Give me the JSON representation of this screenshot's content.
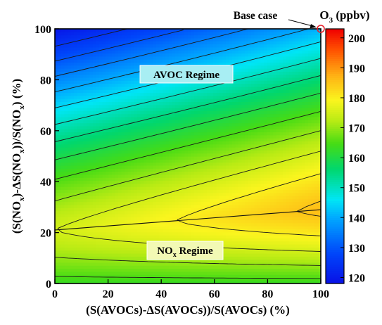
{
  "chart_data": {
    "type": "heatmap",
    "xlabel": "(S(AVOCs)-ΔS(AVOCs))/S(AVOCs)  (%)",
    "ylabel_parts": [
      "(S(NO",
      "x",
      ")-ΔS(NO",
      "x",
      "))/S(NO",
      "x",
      ")  (%)"
    ],
    "x_ticks": [
      0,
      20,
      40,
      60,
      80,
      100
    ],
    "y_ticks": [
      0,
      20,
      40,
      60,
      80,
      100
    ],
    "xlim": [
      0,
      100
    ],
    "ylim": [
      0,
      100
    ],
    "colorbar": {
      "title_parts": [
        "O",
        "3",
        " (ppbv)"
      ],
      "min": 118,
      "max": 203,
      "ticks": [
        120,
        130,
        140,
        150,
        160,
        170,
        180,
        190,
        200
      ]
    },
    "annotations": {
      "base_case": "Base case",
      "avoc_regime": "AVOC  Regime",
      "nox_regime_parts": [
        "NO",
        "x",
        " Regime"
      ]
    },
    "field_samples": [
      {
        "x": 0,
        "y": 100,
        "o3": 119
      },
      {
        "x": 100,
        "y": 100,
        "o3": 141
      },
      {
        "x": 0,
        "y": 60,
        "o3": 158
      },
      {
        "x": 100,
        "y": 60,
        "o3": 172
      },
      {
        "x": 0,
        "y": 22,
        "o3": 175
      },
      {
        "x": 95,
        "y": 25,
        "o3": 186
      },
      {
        "x": 100,
        "y": 10,
        "o3": 175
      },
      {
        "x": 0,
        "y": 0,
        "o3": 163
      },
      {
        "x": 100,
        "y": 0,
        "o3": 163
      }
    ],
    "ridge_line": [
      [
        0,
        21
      ],
      [
        100,
        29
      ]
    ]
  }
}
